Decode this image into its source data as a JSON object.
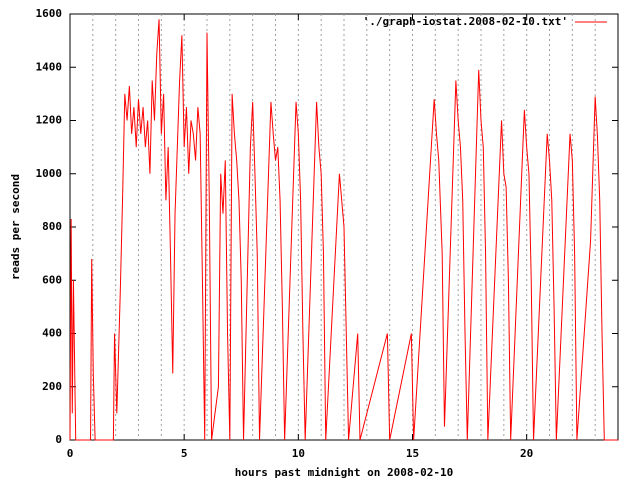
{
  "chart_data": {
    "type": "line",
    "xlabel": "hours past midnight on 2008-02-10",
    "ylabel": "reads per second",
    "xlim": [
      0,
      24
    ],
    "ylim": [
      0,
      1600
    ],
    "xticks": [
      0,
      5,
      10,
      15,
      20
    ],
    "yticks": [
      0,
      200,
      400,
      600,
      800,
      1000,
      1200,
      1400,
      1600
    ],
    "xgrid": [
      1,
      2,
      3,
      4,
      5,
      6,
      7,
      8,
      9,
      10,
      11,
      12,
      13,
      14,
      15,
      16,
      17,
      18,
      19,
      20,
      21,
      22,
      23
    ],
    "legend": "top-right",
    "series": [
      {
        "name": "'./graph-iostat.2008-02-10.txt'",
        "color": "#ff0000",
        "x": [
          0,
          0.05,
          0.1,
          0.15,
          0.25,
          0.9,
          0.95,
          1.02,
          1.1,
          1.9,
          1.95,
          2.05,
          2.2,
          2.3,
          2.4,
          2.5,
          2.6,
          2.7,
          2.8,
          2.9,
          3.0,
          3.1,
          3.2,
          3.3,
          3.4,
          3.5,
          3.6,
          3.7,
          3.8,
          3.9,
          4.0,
          4.1,
          4.2,
          4.3,
          4.4,
          4.5,
          4.6,
          4.7,
          4.8,
          4.9,
          5.0,
          5.1,
          5.2,
          5.3,
          5.4,
          5.5,
          5.6,
          5.7,
          5.8,
          5.9,
          6.0,
          6.1,
          6.2,
          6.5,
          6.6,
          6.7,
          6.8,
          6.9,
          7.0,
          7.1,
          7.2,
          7.3,
          7.4,
          7.5,
          7.6,
          7.9,
          8.0,
          8.1,
          8.2,
          8.3,
          8.8,
          8.9,
          9.0,
          9.1,
          9.2,
          9.3,
          9.4,
          9.9,
          10.0,
          10.1,
          10.2,
          10.3,
          10.8,
          10.9,
          11.0,
          11.1,
          11.2,
          11.8,
          11.9,
          12.0,
          12.1,
          12.2,
          12.6,
          12.7,
          13.9,
          14.0,
          14.95,
          15.05,
          15.95,
          16.05,
          16.15,
          16.3,
          16.4,
          16.9,
          17.0,
          17.1,
          17.2,
          17.3,
          17.4,
          17.9,
          18.0,
          18.1,
          18.2,
          18.3,
          18.9,
          19.0,
          19.1,
          19.2,
          19.3,
          19.9,
          20.0,
          20.1,
          20.2,
          20.3,
          20.9,
          21.0,
          21.1,
          21.2,
          21.3,
          21.9,
          22.0,
          22.1,
          22.2,
          22.6,
          22.8,
          23.0,
          23.1,
          23.2,
          23.3,
          23.4,
          24.0
        ],
        "values": [
          0,
          830,
          100,
          600,
          0,
          0,
          680,
          250,
          0,
          0,
          400,
          100,
          550,
          900,
          1300,
          1200,
          1330,
          1150,
          1250,
          1100,
          1280,
          1150,
          1250,
          1100,
          1200,
          1000,
          1350,
          1200,
          1450,
          1580,
          1150,
          1300,
          900,
          1100,
          700,
          250,
          850,
          1100,
          1350,
          1520,
          1100,
          1250,
          1000,
          1200,
          1150,
          1050,
          1250,
          1150,
          600,
          0,
          1530,
          900,
          0,
          200,
          1000,
          850,
          1050,
          400,
          0,
          1300,
          1150,
          1050,
          900,
          600,
          0,
          1100,
          1270,
          1000,
          700,
          0,
          1270,
          1150,
          1050,
          1100,
          900,
          500,
          0,
          1270,
          1150,
          900,
          400,
          0,
          1270,
          1100,
          1000,
          700,
          0,
          1000,
          900,
          800,
          400,
          0,
          400,
          0,
          400,
          0,
          400,
          0,
          1280,
          1150,
          1050,
          700,
          50,
          1350,
          1200,
          1100,
          900,
          400,
          0,
          1390,
          1200,
          1100,
          700,
          0,
          1200,
          1000,
          950,
          600,
          0,
          1240,
          1100,
          1000,
          600,
          0,
          1150,
          1050,
          900,
          500,
          0,
          1150,
          1050,
          700,
          0,
          500,
          750,
          1290,
          1140,
          900,
          400,
          0,
          0
        ]
      }
    ]
  }
}
